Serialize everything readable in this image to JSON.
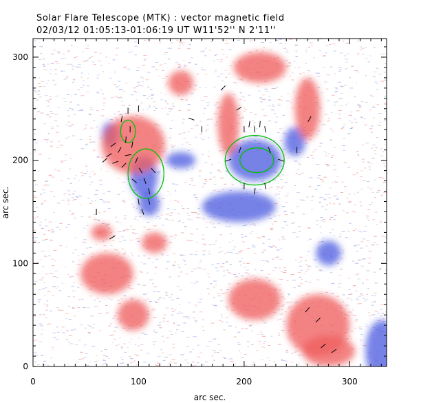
{
  "header": {
    "title": "Solar Flare Telescope (MTK) : vector magnetic field",
    "subtitle": "02/03/12  01:05:13-01:06:19 UT     W11'52''  N 2'11''"
  },
  "chart_data": {
    "type": "heatmap",
    "title": "Solar Flare Telescope (MTK) : vector magnetic field",
    "xlabel": "arc sec.",
    "ylabel": "arc sec.",
    "xlim": [
      0,
      335
    ],
    "ylim": [
      0,
      318
    ],
    "x_ticks": [
      "0",
      "100",
      "200",
      "300"
    ],
    "y_ticks": [
      "0",
      "100",
      "200",
      "300"
    ],
    "x_tick_values": [
      0,
      100,
      200,
      300
    ],
    "y_tick_values": [
      0,
      100,
      200,
      300
    ],
    "colors": {
      "positive": "#f06060",
      "negative": "#5060e0",
      "contour": "#00c000",
      "vector": "#000000"
    },
    "regions": [
      {
        "polarity": "negative",
        "x": 105,
        "y": 184,
        "rx": 13,
        "ry": 20
      },
      {
        "polarity": "negative",
        "x": 110,
        "y": 158,
        "rx": 10,
        "ry": 12
      },
      {
        "polarity": "negative",
        "x": 73,
        "y": 225,
        "rx": 8,
        "ry": 12
      },
      {
        "polarity": "negative",
        "x": 210,
        "y": 200,
        "rx": 25,
        "ry": 20
      },
      {
        "polarity": "negative",
        "x": 195,
        "y": 155,
        "rx": 35,
        "ry": 15
      },
      {
        "polarity": "negative",
        "x": 248,
        "y": 218,
        "rx": 10,
        "ry": 14
      },
      {
        "polarity": "negative",
        "x": 140,
        "y": 200,
        "rx": 14,
        "ry": 8
      },
      {
        "polarity": "negative",
        "x": 330,
        "y": 15,
        "rx": 15,
        "ry": 30
      },
      {
        "polarity": "negative",
        "x": 280,
        "y": 110,
        "rx": 12,
        "ry": 12
      },
      {
        "polarity": "positive",
        "x": 95,
        "y": 215,
        "rx": 30,
        "ry": 28
      },
      {
        "polarity": "positive",
        "x": 215,
        "y": 290,
        "rx": 25,
        "ry": 15
      },
      {
        "polarity": "positive",
        "x": 260,
        "y": 250,
        "rx": 12,
        "ry": 30
      },
      {
        "polarity": "positive",
        "x": 185,
        "y": 235,
        "rx": 10,
        "ry": 30
      },
      {
        "polarity": "positive",
        "x": 140,
        "y": 275,
        "rx": 12,
        "ry": 12
      },
      {
        "polarity": "positive",
        "x": 70,
        "y": 90,
        "rx": 25,
        "ry": 20
      },
      {
        "polarity": "positive",
        "x": 95,
        "y": 50,
        "rx": 15,
        "ry": 15
      },
      {
        "polarity": "positive",
        "x": 210,
        "y": 65,
        "rx": 25,
        "ry": 20
      },
      {
        "polarity": "positive",
        "x": 270,
        "y": 40,
        "rx": 30,
        "ry": 30
      },
      {
        "polarity": "positive",
        "x": 280,
        "y": 15,
        "rx": 25,
        "ry": 15
      },
      {
        "polarity": "positive",
        "x": 115,
        "y": 120,
        "rx": 12,
        "ry": 10
      },
      {
        "polarity": "positive",
        "x": 65,
        "y": 130,
        "rx": 10,
        "ry": 8
      }
    ],
    "contours": [
      {
        "x": 107,
        "y": 187,
        "rx": 17,
        "ry": 24
      },
      {
        "x": 90,
        "y": 228,
        "rx": 7,
        "ry": 11
      },
      {
        "x": 210,
        "y": 200,
        "rx": 28,
        "ry": 24
      },
      {
        "x": 212,
        "y": 200,
        "rx": 16,
        "ry": 12
      }
    ],
    "vectors": [
      {
        "x": 68,
        "y": 200,
        "a": 40
      },
      {
        "x": 72,
        "y": 205,
        "a": 30
      },
      {
        "x": 78,
        "y": 198,
        "a": 20
      },
      {
        "x": 82,
        "y": 210,
        "a": 60
      },
      {
        "x": 86,
        "y": 195,
        "a": 45
      },
      {
        "x": 90,
        "y": 205,
        "a": 10
      },
      {
        "x": 94,
        "y": 215,
        "a": 80
      },
      {
        "x": 98,
        "y": 200,
        "a": 70
      },
      {
        "x": 102,
        "y": 190,
        "a": -60
      },
      {
        "x": 106,
        "y": 180,
        "a": -70
      },
      {
        "x": 110,
        "y": 170,
        "a": -80
      },
      {
        "x": 114,
        "y": 190,
        "a": -50
      },
      {
        "x": 100,
        "y": 160,
        "a": 100
      },
      {
        "x": 104,
        "y": 150,
        "a": 110
      },
      {
        "x": 110,
        "y": 160,
        "a": 100
      },
      {
        "x": 88,
        "y": 220,
        "a": 85
      },
      {
        "x": 92,
        "y": 230,
        "a": 90
      },
      {
        "x": 84,
        "y": 240,
        "a": 80
      },
      {
        "x": 76,
        "y": 215,
        "a": 35
      },
      {
        "x": 96,
        "y": 180,
        "a": -40
      },
      {
        "x": 200,
        "y": 230,
        "a": 90
      },
      {
        "x": 205,
        "y": 235,
        "a": 80
      },
      {
        "x": 210,
        "y": 230,
        "a": 95
      },
      {
        "x": 215,
        "y": 235,
        "a": 85
      },
      {
        "x": 220,
        "y": 230,
        "a": 100
      },
      {
        "x": 196,
        "y": 210,
        "a": 70
      },
      {
        "x": 224,
        "y": 210,
        "a": 110
      },
      {
        "x": 200,
        "y": 175,
        "a": -90
      },
      {
        "x": 210,
        "y": 170,
        "a": -100
      },
      {
        "x": 220,
        "y": 175,
        "a": -80
      },
      {
        "x": 185,
        "y": 200,
        "a": 20
      },
      {
        "x": 235,
        "y": 200,
        "a": 160
      },
      {
        "x": 250,
        "y": 210,
        "a": 90
      },
      {
        "x": 262,
        "y": 240,
        "a": 60
      },
      {
        "x": 180,
        "y": 270,
        "a": 45
      },
      {
        "x": 195,
        "y": 250,
        "a": 30
      },
      {
        "x": 260,
        "y": 55,
        "a": 50
      },
      {
        "x": 270,
        "y": 45,
        "a": 45
      },
      {
        "x": 275,
        "y": 20,
        "a": 40
      },
      {
        "x": 285,
        "y": 15,
        "a": 35
      },
      {
        "x": 60,
        "y": 150,
        "a": -90
      },
      {
        "x": 75,
        "y": 125,
        "a": 30
      },
      {
        "x": 150,
        "y": 240,
        "a": -20
      },
      {
        "x": 160,
        "y": 230,
        "a": 90
      },
      {
        "x": 90,
        "y": 248,
        "a": 90
      },
      {
        "x": 100,
        "y": 250,
        "a": 90
      }
    ]
  }
}
